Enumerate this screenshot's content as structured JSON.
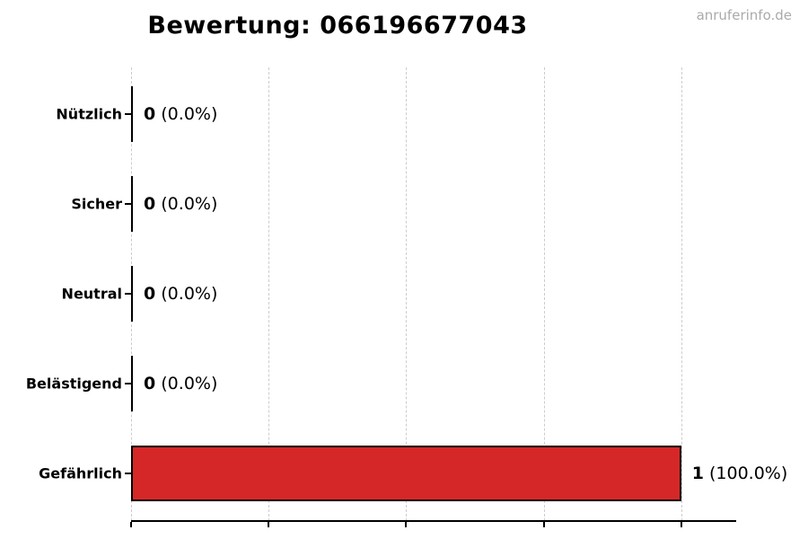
{
  "watermark": {
    "text": "anruferinfo.de",
    "color": "#aaaaaa"
  },
  "chart_data": {
    "type": "bar",
    "orientation": "horizontal",
    "title": "Bewertung: 066196677043",
    "categories": [
      "Nützlich",
      "Sicher",
      "Neutral",
      "Belästigend",
      "Gefährlich"
    ],
    "values": [
      0,
      0,
      0,
      0,
      1
    ],
    "counts": [
      "0",
      "0",
      "0",
      "0",
      "1"
    ],
    "percents": [
      "(0.0%)",
      "(0.0%)",
      "(0.0%)",
      "(0.0%)",
      "(100.0%)"
    ],
    "xlabel": "",
    "ylabel": "",
    "xlim": [
      0,
      1.1
    ],
    "x_ticks": [
      0,
      0.25,
      0.5,
      0.75,
      1.0
    ],
    "x_tick_labels_visible": false,
    "grid": {
      "axis": "x",
      "style": "dashed",
      "color": "#cccccc"
    },
    "bar_color": "#d62728",
    "bar_edge_color": "#000000",
    "text_color": "#000000"
  }
}
